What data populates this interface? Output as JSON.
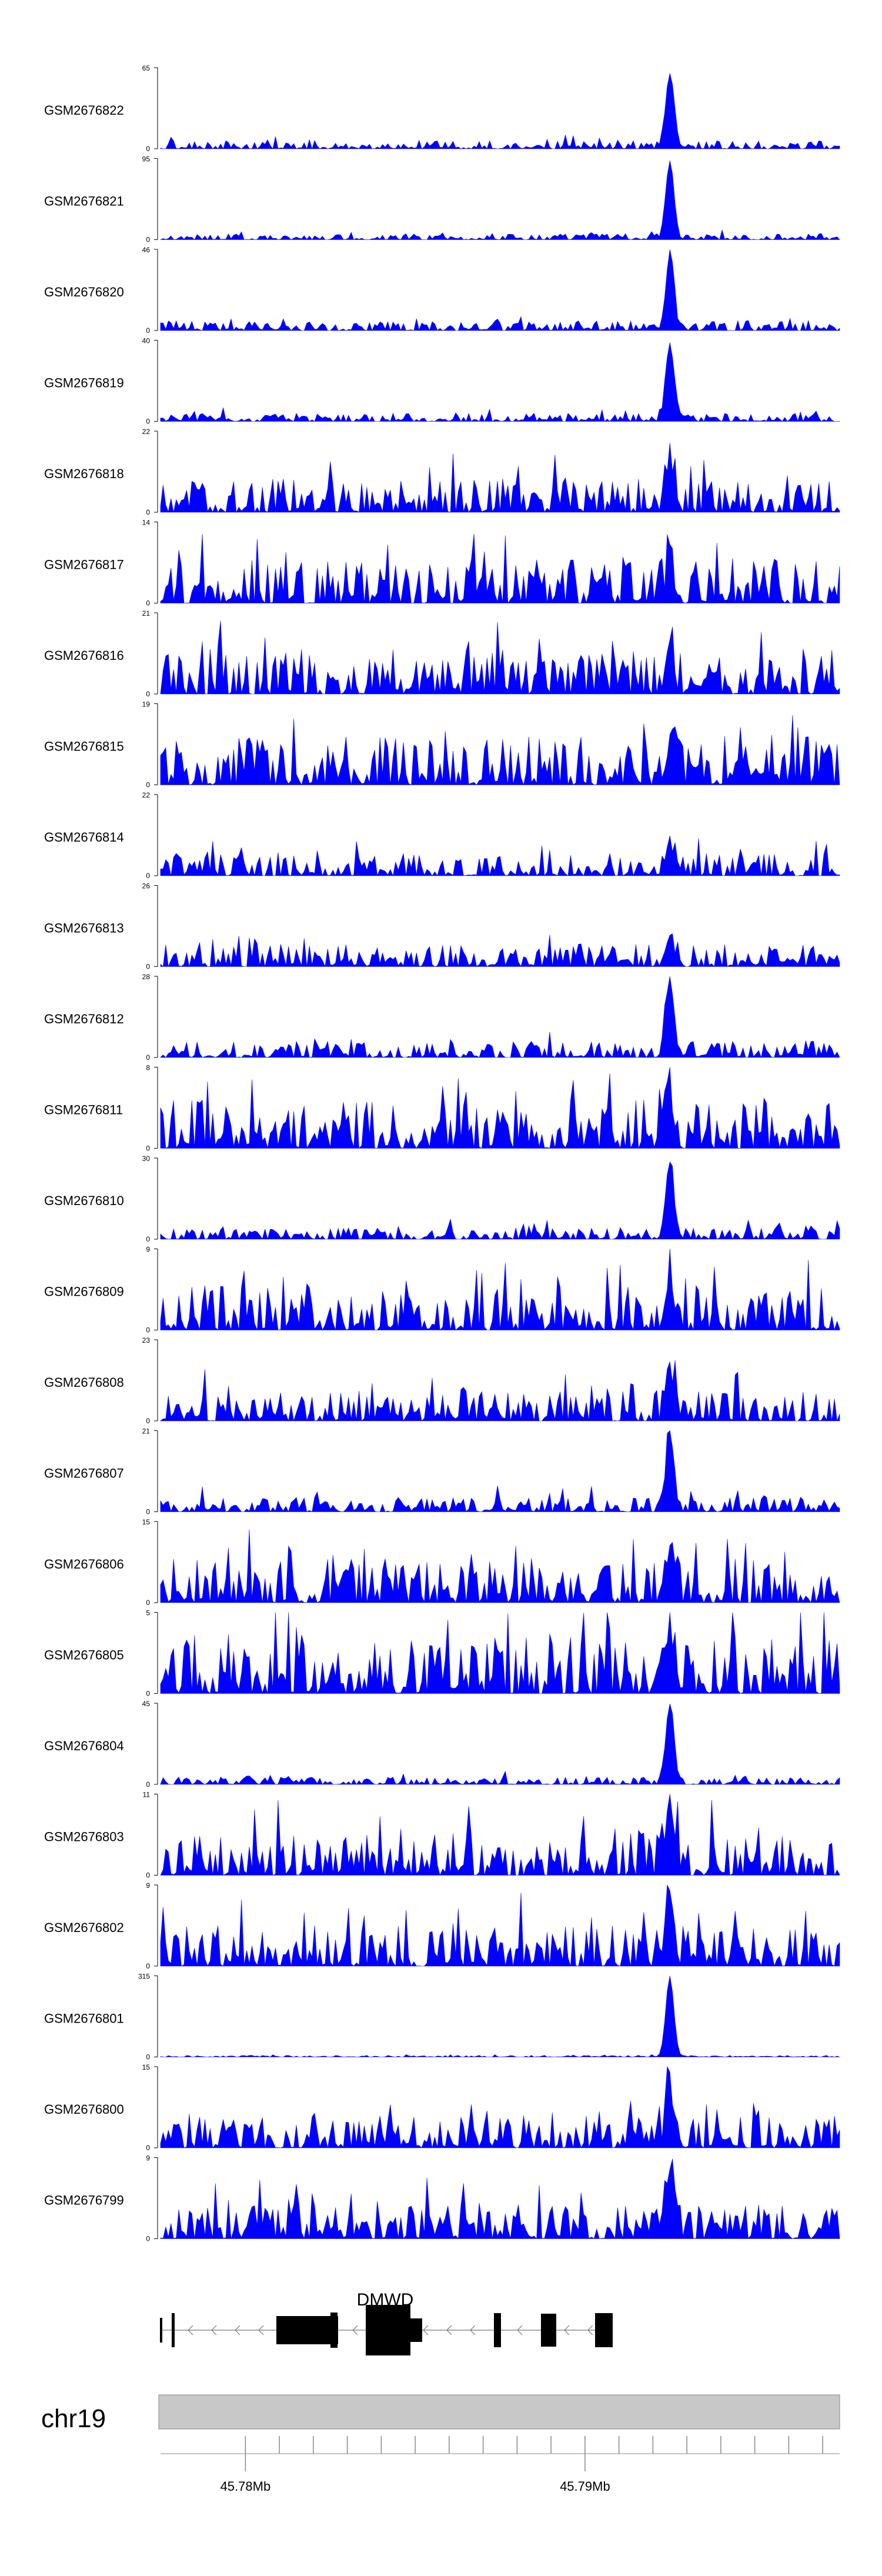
{
  "chart_data": {
    "type": "area",
    "series_color": "#0000ff",
    "tracks": [
      {
        "name": "GSM2676822",
        "ymax": "65",
        "ymin": "0",
        "peak": 0.93,
        "base": 0.1,
        "seed": 22
      },
      {
        "name": "GSM2676821",
        "ymax": "95",
        "ymin": "0",
        "peak": 0.97,
        "base": 0.07,
        "seed": 21
      },
      {
        "name": "GSM2676820",
        "ymax": "46",
        "ymin": "0",
        "peak": 0.92,
        "base": 0.12,
        "seed": 20
      },
      {
        "name": "GSM2676819",
        "ymax": "40",
        "ymin": "0",
        "peak": 0.97,
        "base": 0.1,
        "seed": 19
      },
      {
        "name": "GSM2676818",
        "ymax": "22",
        "ymin": "0",
        "peak": 0.6,
        "base": 0.42,
        "seed": 18
      },
      {
        "name": "GSM2676817",
        "ymax": "14",
        "ymin": "0",
        "peak": 0.4,
        "base": 0.55,
        "seed": 17
      },
      {
        "name": "GSM2676816",
        "ymax": "21",
        "ymin": "0",
        "peak": 0.4,
        "base": 0.55,
        "seed": 16
      },
      {
        "name": "GSM2676815",
        "ymax": "19",
        "ymin": "0",
        "peak": 0.4,
        "base": 0.6,
        "seed": 15
      },
      {
        "name": "GSM2676814",
        "ymax": "22",
        "ymin": "0",
        "peak": 0.3,
        "base": 0.28,
        "seed": 14
      },
      {
        "name": "GSM2676813",
        "ymax": "26",
        "ymin": "0",
        "peak": 0.3,
        "base": 0.28,
        "seed": 13
      },
      {
        "name": "GSM2676812",
        "ymax": "28",
        "ymin": "0",
        "peak": 0.95,
        "base": 0.2,
        "seed": 12
      },
      {
        "name": "GSM2676811",
        "ymax": "8",
        "ymin": "0",
        "peak": 0.55,
        "base": 0.6,
        "seed": 11
      },
      {
        "name": "GSM2676810",
        "ymax": "30",
        "ymin": "0",
        "peak": 0.95,
        "base": 0.14,
        "seed": 10
      },
      {
        "name": "GSM2676809",
        "ymax": "9",
        "ymin": "0",
        "peak": 0.6,
        "base": 0.55,
        "seed": 9
      },
      {
        "name": "GSM2676808",
        "ymax": "23",
        "ymin": "0",
        "peak": 0.5,
        "base": 0.4,
        "seed": 8
      },
      {
        "name": "GSM2676807",
        "ymax": "21",
        "ymin": "0",
        "peak": 0.95,
        "base": 0.18,
        "seed": 7
      },
      {
        "name": "GSM2676806",
        "ymax": "15",
        "ymin": "0",
        "peak": 0.55,
        "base": 0.55,
        "seed": 6
      },
      {
        "name": "GSM2676805",
        "ymax": "5",
        "ymin": "0",
        "peak": 0.5,
        "base": 0.7,
        "seed": 5
      },
      {
        "name": "GSM2676804",
        "ymax": "45",
        "ymin": "0",
        "peak": 0.97,
        "base": 0.09,
        "seed": 4
      },
      {
        "name": "GSM2676803",
        "ymax": "11",
        "ymin": "0",
        "peak": 0.75,
        "base": 0.55,
        "seed": 3
      },
      {
        "name": "GSM2676802",
        "ymax": "9",
        "ymin": "0",
        "peak": 0.85,
        "base": 0.5,
        "seed": 2
      },
      {
        "name": "GSM2676801",
        "ymax": "315",
        "ymin": "0",
        "peak": 0.98,
        "base": 0.02,
        "seed": 1
      },
      {
        "name": "GSM2676800",
        "ymax": "15",
        "ymin": "0",
        "peak": 0.65,
        "base": 0.4,
        "seed": 100
      },
      {
        "name": "GSM2676799",
        "ymax": "9",
        "ymin": "0",
        "peak": 0.8,
        "base": 0.45,
        "seed": 99
      }
    ],
    "gene": {
      "name": "DMWD",
      "strand": "-"
    },
    "chromosome": "chr19",
    "xaxis": {
      "range_mb": [
        45.7775,
        45.7975
      ],
      "ticks_mb": [
        45.78,
        45.781,
        45.782,
        45.783,
        45.784,
        45.785,
        45.786,
        45.787,
        45.788,
        45.789,
        45.79,
        45.791,
        45.792,
        45.793,
        45.794,
        45.795,
        45.796,
        45.797
      ],
      "labels": [
        {
          "at": 45.78,
          "text": "45.78Mb"
        },
        {
          "at": 45.79,
          "text": "45.79Mb"
        }
      ]
    }
  }
}
